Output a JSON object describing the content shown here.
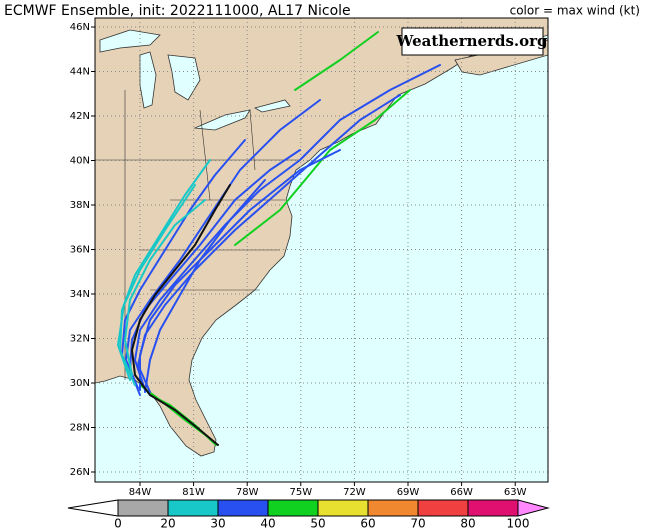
{
  "header": {
    "title": "ECMWF Ensemble, init: 2022111000, AL17 Nicole",
    "legend_note": "color = max wind (kt)"
  },
  "watermark": "Weathernerds.org",
  "map": {
    "lat_labels": [
      "46N",
      "44N",
      "42N",
      "40N",
      "38N",
      "36N",
      "34N",
      "32N",
      "30N",
      "28N",
      "26N"
    ],
    "lon_labels": [
      "84W",
      "81W",
      "78W",
      "75W",
      "72W",
      "69W",
      "66W",
      "63W"
    ]
  },
  "colorbar": {
    "ticks": [
      0,
      20,
      30,
      40,
      50,
      60,
      70,
      80,
      100
    ],
    "colors": [
      "#ffffff",
      "#a8a8a8",
      "#18c8c8",
      "#2850f0",
      "#10d020",
      "#e8e030",
      "#f08830",
      "#f04040",
      "#e01070",
      "#ff88ff"
    ]
  }
}
